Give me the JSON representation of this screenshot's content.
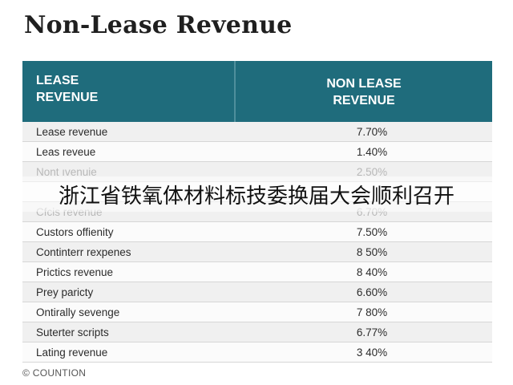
{
  "title": "Non-Lease Revenue",
  "table": {
    "header": {
      "col1": [
        "LEASE",
        "REVENUE"
      ],
      "col2": [
        "NON LEASE",
        "REVENUE"
      ]
    },
    "rows": [
      {
        "label": "Lease revenue",
        "value": "7.70%"
      },
      {
        "label": "Leas reveue",
        "value": "1.40%"
      },
      {
        "label": "Nont ıvenuie",
        "value": "2.50%"
      },
      {
        "label": "",
        "value": ""
      },
      {
        "label": "Cfcis revenue",
        "value": "6.70%"
      },
      {
        "label": "Custors offienity",
        "value": "7.50%"
      },
      {
        "label": "Continterr rexpenes",
        "value": "8 50%"
      },
      {
        "label": "Prictics revenue",
        "value": "8 40%"
      },
      {
        "label": "Prey paricty",
        "value": "6.60%"
      },
      {
        "label": "Ontirally sevenge",
        "value": "7 80%"
      },
      {
        "label": "Suterter scripts",
        "value": "6.77%"
      },
      {
        "label": "Lating revenue",
        "value": "3 40%"
      }
    ]
  },
  "footer": "© COUNTION",
  "overlay_text": "浙江省铁氧体材料标技委换届大会顺利召开",
  "colors": {
    "header_bg": "#1f6c7c",
    "header_text": "#ffffff"
  }
}
